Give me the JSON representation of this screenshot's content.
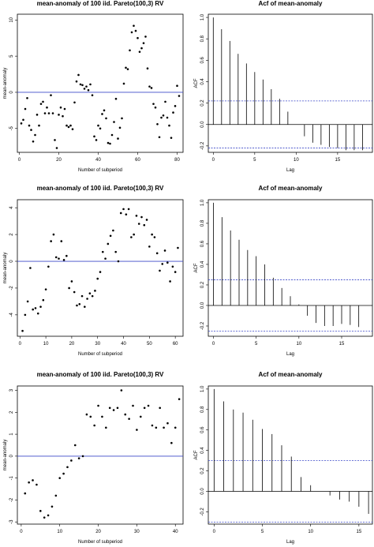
{
  "chart_data": [
    {
      "type": "scatter",
      "title": "mean-anomaly of 100 iid. Pareto(100,3) RV",
      "xlabel": "Number of subperiod",
      "ylabel": "mean-anomaly",
      "xlim": [
        -1,
        83
      ],
      "ylim": [
        -8.3,
        10.8
      ],
      "xticks": [
        0,
        20,
        40,
        60,
        80
      ],
      "yticks": [
        -5,
        0,
        5,
        10
      ],
      "hline": 0,
      "x": [
        1,
        2,
        3,
        4,
        5,
        6,
        7,
        8,
        9,
        10,
        11,
        12,
        13,
        14,
        15,
        16,
        17,
        18,
        19,
        20,
        21,
        22,
        23,
        24,
        25,
        26,
        27,
        28,
        29,
        30,
        31,
        32,
        33,
        34,
        35,
        36,
        37,
        38,
        39,
        40,
        41,
        42,
        43,
        44,
        45,
        46,
        47,
        48,
        49,
        50,
        51,
        52,
        53,
        54,
        55,
        56,
        57,
        58,
        59,
        60,
        61,
        62,
        63,
        64,
        65,
        66,
        67,
        68,
        69,
        70,
        71,
        72,
        73,
        74,
        75,
        76,
        77,
        78,
        79,
        80,
        81
      ],
      "values": [
        -4.3,
        -3.8,
        -2.3,
        -0.8,
        -4.6,
        -5.2,
        -6.8,
        -5.9,
        -3.1,
        -4.6,
        -1.6,
        -1.3,
        -2.9,
        -2.1,
        -2.9,
        -0.4,
        -2.9,
        -6.6,
        -7.7,
        -3.1,
        -2.1,
        -3.3,
        -2.3,
        -4.6,
        -4.8,
        -4.6,
        -5.1,
        -1.4,
        1.5,
        2.4,
        1.1,
        1.0,
        0.5,
        0.8,
        0.3,
        1.1,
        -0.4,
        -6.1,
        -6.6,
        -4.6,
        -5.0,
        -3.0,
        -2.5,
        -3.6,
        -7.0,
        -7.1,
        -5.9,
        -4.1,
        -0.9,
        -6.4,
        -4.9,
        -3.6,
        1.2,
        3.4,
        3.2,
        5.8,
        8.3,
        9.2,
        8.5,
        7.5,
        5.6,
        6.1,
        6.8,
        7.7,
        3.3,
        0.8,
        0.6,
        -1.6,
        -2.1,
        -4.4,
        -6.2,
        -3.5,
        -3.2,
        -1.3,
        -3.5,
        -4.6,
        -6.3,
        -2.8,
        -1.9,
        0.9,
        -0.5
      ]
    },
    {
      "type": "bar",
      "title": "Acf of mean-anomaly",
      "xlabel": "Lag",
      "ylabel": "ACF",
      "xlim": [
        -0.6,
        19.2
      ],
      "ylim": [
        -0.26,
        1.03
      ],
      "xticks": [
        0,
        5,
        10,
        15
      ],
      "yticks": [
        -0.2,
        0.0,
        0.2,
        0.4,
        0.6,
        0.8,
        1.0
      ],
      "conf_band": 0.22,
      "lags": [
        0,
        1,
        2,
        3,
        4,
        5,
        6,
        7,
        8,
        9,
        10,
        11,
        12,
        13,
        14,
        15,
        16,
        17,
        18
      ],
      "values": [
        1.0,
        0.89,
        0.78,
        0.66,
        0.57,
        0.49,
        0.42,
        0.33,
        0.24,
        0.12,
        0.0,
        -0.11,
        -0.17,
        -0.19,
        -0.21,
        -0.22,
        -0.24,
        -0.24,
        -0.24
      ]
    },
    {
      "type": "scatter",
      "title": "mean-anomaly of 100 iid. Pareto(100,3) RV",
      "xlabel": "Number of subperiod",
      "ylabel": "mean-anomaly",
      "xlim": [
        -1,
        63
      ],
      "ylim": [
        -5.6,
        4.6
      ],
      "xticks": [
        0,
        10,
        20,
        30,
        40,
        50,
        60
      ],
      "yticks": [
        -4,
        -2,
        0,
        2,
        4
      ],
      "hline": 0,
      "x": [
        1,
        2,
        3,
        4,
        5,
        6,
        7,
        8,
        9,
        10,
        11,
        12,
        13,
        14,
        15,
        16,
        17,
        18,
        19,
        20,
        21,
        22,
        23,
        24,
        25,
        26,
        27,
        28,
        29,
        30,
        31,
        32,
        33,
        34,
        35,
        36,
        37,
        38,
        39,
        40,
        41,
        42,
        43,
        44,
        45,
        46,
        47,
        48,
        49,
        50,
        51,
        52,
        53,
        54,
        55,
        56,
        57,
        58,
        59,
        60,
        61
      ],
      "values": [
        -5.2,
        -4.0,
        -3.0,
        -0.5,
        -3.6,
        -3.5,
        -3.9,
        -3.4,
        -2.9,
        -2.1,
        -0.4,
        1.5,
        2.0,
        0.3,
        0.2,
        1.5,
        0.1,
        0.4,
        -2.0,
        -1.5,
        -2.3,
        -3.3,
        -3.2,
        -2.6,
        -3.4,
        -2.8,
        -2.4,
        -2.6,
        -2.2,
        -1.3,
        -0.8,
        0.7,
        0.2,
        1.3,
        1.9,
        2.3,
        0.7,
        0.0,
        3.6,
        3.9,
        3.5,
        3.9,
        1.8,
        2.0,
        3.4,
        2.8,
        3.3,
        2.7,
        3.1,
        1.1,
        2.0,
        1.8,
        0.6,
        -0.7,
        -0.2,
        0.8,
        -0.1,
        -1.5,
        -0.4,
        -0.8,
        1.0
      ]
    },
    {
      "type": "bar",
      "title": "Acf of mean-anomaly",
      "xlabel": "Lag",
      "ylabel": "ACF",
      "xlim": [
        -0.6,
        18.6
      ],
      "ylim": [
        -0.3,
        1.03
      ],
      "xticks": [
        0,
        5,
        10,
        15
      ],
      "yticks": [
        -0.2,
        0.0,
        0.2,
        0.4,
        0.6,
        0.8,
        1.0
      ],
      "conf_band": 0.25,
      "lags": [
        0,
        1,
        2,
        3,
        4,
        5,
        6,
        7,
        8,
        9,
        10,
        11,
        12,
        13,
        14,
        15,
        16,
        17
      ],
      "values": [
        1.0,
        0.86,
        0.73,
        0.64,
        0.54,
        0.48,
        0.4,
        0.27,
        0.17,
        0.09,
        0.01,
        -0.1,
        -0.17,
        -0.2,
        -0.2,
        -0.18,
        -0.19,
        -0.21
      ]
    },
    {
      "type": "scatter",
      "title": "mean-anomaly of 100 iid. Pareto(100,3) RV",
      "xlabel": "Number of subperiod",
      "ylabel": "mean-anomaly",
      "xlim": [
        -1,
        42
      ],
      "ylim": [
        -3.1,
        3.2
      ],
      "xticks": [
        0,
        10,
        20,
        30,
        40
      ],
      "yticks": [
        -3,
        -2,
        -1,
        0,
        1,
        2,
        3
      ],
      "hline": 0,
      "x": [
        1,
        2,
        3,
        4,
        5,
        6,
        7,
        8,
        9,
        10,
        11,
        12,
        13,
        14,
        15,
        16,
        17,
        18,
        19,
        20,
        21,
        22,
        23,
        24,
        25,
        26,
        27,
        28,
        29,
        30,
        31,
        32,
        33,
        34,
        35,
        36,
        37,
        38,
        39,
        40,
        41
      ],
      "values": [
        -1.7,
        -1.2,
        -1.1,
        -1.3,
        -2.5,
        -2.8,
        -2.7,
        -2.3,
        -1.8,
        -1.0,
        -0.8,
        -0.5,
        -0.2,
        0.5,
        -0.1,
        0.0,
        1.9,
        1.8,
        1.4,
        2.3,
        1.8,
        1.3,
        2.2,
        2.1,
        2.2,
        3.0,
        1.9,
        1.7,
        2.3,
        1.2,
        1.8,
        2.2,
        2.3,
        1.4,
        1.3,
        2.2,
        1.3,
        1.5,
        0.6,
        1.3,
        2.6
      ]
    },
    {
      "type": "bar",
      "title": "Acf of mean-anomaly",
      "xlabel": "Lag",
      "ylabel": "ACF",
      "xlim": [
        -0.6,
        16.4
      ],
      "ylim": [
        -0.32,
        1.03
      ],
      "xticks": [
        0,
        5,
        10,
        15
      ],
      "yticks": [
        -0.2,
        0.0,
        0.2,
        0.4,
        0.6,
        0.8,
        1.0
      ],
      "conf_band": 0.3,
      "lags": [
        0,
        1,
        2,
        3,
        4,
        5,
        6,
        7,
        8,
        9,
        10,
        11,
        12,
        13,
        14,
        15,
        16
      ],
      "values": [
        1.0,
        0.88,
        0.8,
        0.77,
        0.7,
        0.61,
        0.56,
        0.45,
        0.34,
        0.14,
        0.06,
        0.0,
        -0.04,
        -0.08,
        -0.1,
        -0.15,
        -0.22
      ]
    }
  ]
}
